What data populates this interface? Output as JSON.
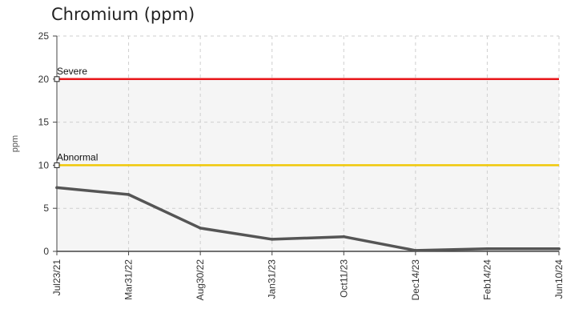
{
  "chart_data": {
    "type": "line",
    "title": "Chromium (ppm)",
    "ylabel": "ppm",
    "xlabel": "",
    "ylim": [
      0,
      25
    ],
    "yticks": [
      0,
      5,
      10,
      15,
      20,
      25
    ],
    "categories": [
      "Jul23/21",
      "Mar31/22",
      "Aug30/22",
      "Jan31/23",
      "Oct11/23",
      "Dec14/23",
      "Feb14/24",
      "Jun10/24"
    ],
    "series": [
      {
        "values": [
          7.4,
          6.6,
          2.7,
          1.4,
          1.7,
          0.1,
          0.3,
          0.3
        ],
        "color": "#555555"
      }
    ],
    "reference_lines": [
      {
        "label": "Severe",
        "value": 20,
        "color": "#e8171b"
      },
      {
        "label": "Abnormal",
        "value": 10,
        "color": "#f0c808"
      }
    ],
    "bands": [
      {
        "from": 10,
        "to": 20,
        "color": "#f5f5f5"
      },
      {
        "from": 0,
        "to": 10,
        "color": "#f5f5f5"
      }
    ],
    "grid": true
  }
}
